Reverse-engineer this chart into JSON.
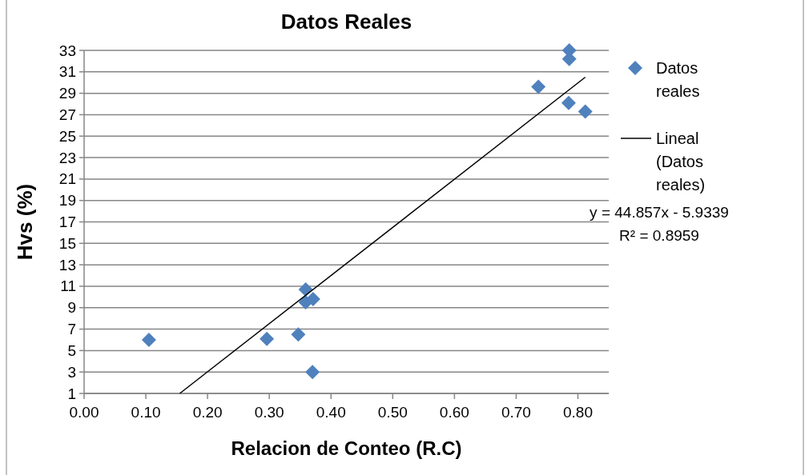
{
  "chart_data": {
    "type": "scatter",
    "title": "Datos Reales",
    "xlabel": "Relacion de Conteo (R.C)",
    "ylabel": "Hvs (%)",
    "xlim": [
      0,
      0.85
    ],
    "xticks": [
      {
        "value": 0,
        "label": "0.00"
      },
      {
        "value": 0.1,
        "label": "0.10"
      },
      {
        "value": 0.2,
        "label": "0.20"
      },
      {
        "value": 0.3,
        "label": "0.30"
      },
      {
        "value": 0.4,
        "label": "0.40"
      },
      {
        "value": 0.5,
        "label": "0.50"
      },
      {
        "value": 0.6,
        "label": "0.60"
      },
      {
        "value": 0.7,
        "label": "0.70"
      },
      {
        "value": 0.8,
        "label": "0.80"
      }
    ],
    "ylim": [
      1,
      33
    ],
    "yticks": [
      1,
      3,
      5,
      7,
      9,
      11,
      13,
      15,
      17,
      19,
      21,
      23,
      25,
      27,
      29,
      31,
      33
    ],
    "grid": "y",
    "legend": "right",
    "series": [
      {
        "name": "Datos reales",
        "marker": "diamond",
        "color": "#4f81bd",
        "x": [
          0.105,
          0.296,
          0.347,
          0.359,
          0.359,
          0.371,
          0.37,
          0.786,
          0.786,
          0.736,
          0.785,
          0.812
        ],
        "values": [
          6.0,
          6.1,
          6.5,
          10.7,
          9.5,
          9.8,
          3.0,
          33.0,
          32.2,
          29.6,
          28.1,
          27.3
        ]
      },
      {
        "name": "Lineal (Datos reales)",
        "type": "line",
        "color": "#000000",
        "x": [
          0.155,
          0.812
        ],
        "values": [
          1.0,
          30.5
        ]
      }
    ],
    "annotations": [
      "y = 44.857x - 5.9339",
      "R² = 0.8959"
    ]
  }
}
